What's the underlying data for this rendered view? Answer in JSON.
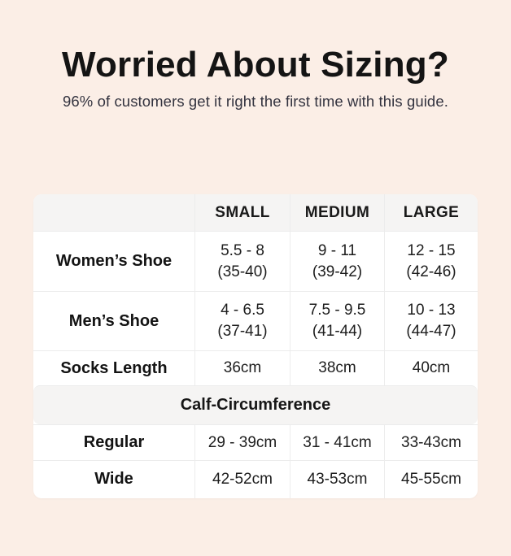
{
  "page": {
    "title": "Worried About Sizing?",
    "subtitle": "96% of customers get it right the first time with this guide."
  },
  "colors": {
    "background": "#fbeee6",
    "card": "#ffffff",
    "band": "#f5f4f3",
    "border": "#ececec",
    "title_text": "#141414",
    "subtitle_text": "#33333f",
    "cell_text": "#1d1d1d"
  },
  "table": {
    "header": {
      "small": "SMALL",
      "medium": "MEDIUM",
      "large": "LARGE"
    },
    "womens_shoe": {
      "label": "Women’s Shoe",
      "small_us": "5.5 - 8",
      "small_eu": "(35-40)",
      "medium_us": "9 - 11",
      "medium_eu": "(39-42)",
      "large_us": "12 - 15",
      "large_eu": "(42-46)"
    },
    "mens_shoe": {
      "label": "Men’s Shoe",
      "small_us": "4 - 6.5",
      "small_eu": "(37-41)",
      "medium_us": "7.5 - 9.5",
      "medium_eu": "(41-44)",
      "large_us": "10 - 13",
      "large_eu": "(44-47)"
    },
    "socks_length": {
      "label": "Socks Length",
      "small": "36cm",
      "medium": "38cm",
      "large": "40cm"
    },
    "calf_section": {
      "label": "Calf-Circumference"
    },
    "regular": {
      "label": "Regular",
      "small": "29 - 39cm",
      "medium": "31 - 41cm",
      "large": "33-43cm"
    },
    "wide": {
      "label": "Wide",
      "small": "42-52cm",
      "medium": "43-53cm",
      "large": "45-55cm"
    }
  },
  "chart_data": {
    "type": "table",
    "title": "Worried About Sizing?",
    "subtitle": "96% of customers get it right the first time with this guide.",
    "columns": [
      "",
      "SMALL",
      "MEDIUM",
      "LARGE"
    ],
    "rows": [
      [
        "Women’s Shoe",
        "5.5 - 8 (35-40)",
        "9 - 11 (39-42)",
        "12 - 15 (42-46)"
      ],
      [
        "Men’s Shoe",
        "4 - 6.5 (37-41)",
        "7.5 - 9.5 (41-44)",
        "10 - 13 (44-47)"
      ],
      [
        "Socks Length",
        "36cm",
        "38cm",
        "40cm"
      ],
      [
        "Regular",
        "29 - 39cm",
        "31 - 41cm",
        "33-43cm"
      ],
      [
        "Wide",
        "42-52cm",
        "43-53cm",
        "45-55cm"
      ]
    ],
    "section_header_row": {
      "after_row": "Socks Length",
      "label": "Calf-Circumference"
    },
    "layout": {
      "header_band": true,
      "section_band": true,
      "grid": "light"
    }
  }
}
